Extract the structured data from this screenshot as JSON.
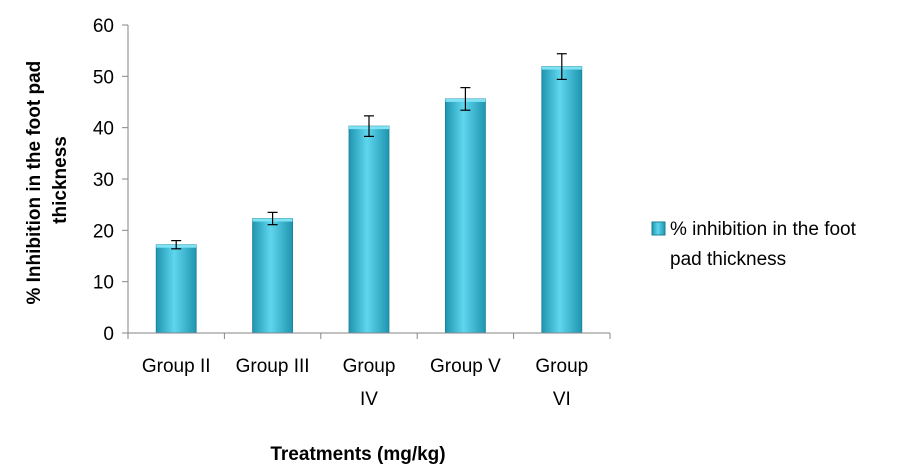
{
  "chart_data": {
    "type": "bar",
    "categories": [
      "Group II",
      "Group III",
      "Group IV",
      "Group V",
      "Group VI"
    ],
    "category_lines": [
      [
        "Group II"
      ],
      [
        "Group III"
      ],
      [
        "Group",
        "IV"
      ],
      [
        "Group V"
      ],
      [
        "Group",
        "VI"
      ]
    ],
    "series": [
      {
        "name": "% inhibition in the foot pad thickness",
        "values": [
          17.2,
          22.3,
          40.3,
          45.6,
          51.9
        ],
        "errors": [
          0.8,
          1.2,
          2.0,
          2.2,
          2.5
        ],
        "color": "#3bbcd8"
      }
    ],
    "title": "",
    "xlabel": "Treatments (mg/kg)",
    "ylabel_lines": [
      "% Inhibition in the foot pad",
      "thickness"
    ],
    "legend_lines": [
      "% inhibition in the foot",
      "pad thickness"
    ],
    "ylim": [
      0,
      60
    ],
    "yticks": [
      0,
      10,
      20,
      30,
      40,
      50,
      60
    ],
    "grid": false,
    "legend_position": "right"
  }
}
